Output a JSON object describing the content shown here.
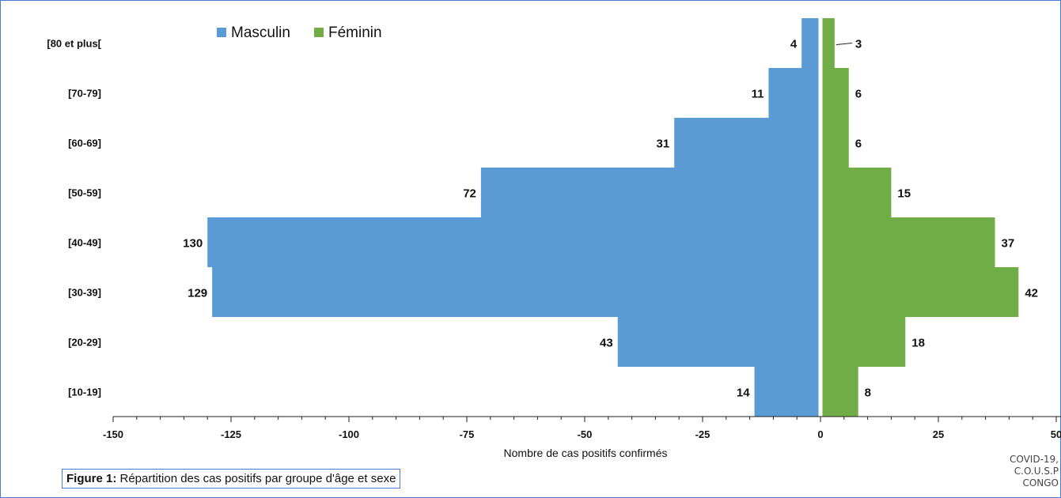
{
  "chart_data": {
    "type": "bar",
    "orientation": "horizontal",
    "layout": "population-pyramid",
    "categories": [
      "[80 et plus[",
      "[70-79]",
      "[60-69]",
      "[50-59]",
      "[40-49]",
      "[30-39]",
      "[20-29]",
      "[10-19]"
    ],
    "series": [
      {
        "name": "Masculin",
        "color": "#5b9bd5",
        "values": [
          -4,
          -11,
          -31,
          -72,
          -130,
          -129,
          -43,
          -14
        ],
        "labels": [
          "4",
          "11",
          "31",
          "72",
          "130",
          "129",
          "43",
          "14"
        ]
      },
      {
        "name": "Féminin",
        "color": "#70ad47",
        "values": [
          3,
          6,
          6,
          15,
          37,
          42,
          18,
          8
        ],
        "labels": [
          "3",
          "6",
          "6",
          "15",
          "37",
          "42",
          "18",
          "8"
        ]
      }
    ],
    "xlabel": "Nombre de cas positifs confirmés",
    "xlim": [
      -150,
      50
    ],
    "xticks": [
      -150,
      -125,
      -100,
      -75,
      -50,
      -25,
      0,
      25,
      50
    ],
    "xtick_labels": [
      "-150",
      "-125",
      "-100",
      "-75",
      "-50",
      "-25",
      "0",
      "25",
      "50"
    ],
    "legend_position": "top"
  },
  "caption": {
    "label": "Figure 1:",
    "text": " Répartition des cas positifs par groupe d'âge et sexe"
  },
  "credit": [
    "COVID-19,",
    "C.O.U.S.P",
    "CONGO"
  ],
  "colors": {
    "frame_border": "#4a7bd0"
  }
}
